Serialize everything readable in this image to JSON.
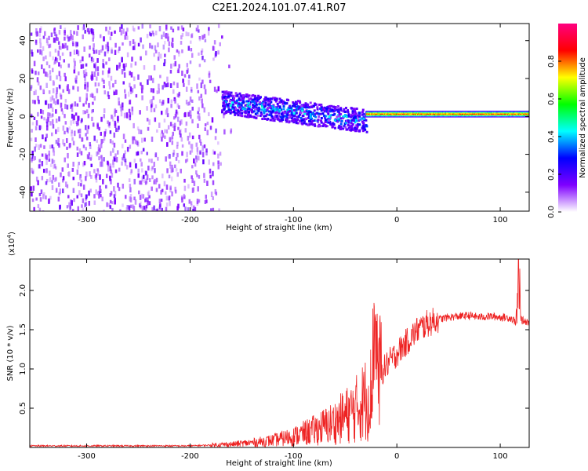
{
  "title": "C2E1.2024.101.07.41.R07",
  "chart_data": [
    {
      "type": "heatmap",
      "xlabel": "Height of straight line (km)",
      "ylabel": "Frequency (Hz)",
      "xlim": [
        -355,
        128
      ],
      "ylim": [
        -50,
        49
      ],
      "xticks": [
        -300,
        -200,
        -100,
        0,
        100
      ],
      "xtick_labels": [
        "-300",
        "-200",
        "-100",
        "0",
        "100"
      ],
      "yticks": [
        -40,
        -20,
        0,
        20,
        40
      ],
      "ytick_labels": [
        "-40",
        "-20",
        "0",
        "20",
        "40"
      ],
      "colorbar": {
        "label": "Normalized spectral amplitude",
        "range": [
          0,
          1
        ],
        "ticks": [
          0.0,
          0.2,
          0.4,
          0.6,
          0.8
        ],
        "tick_labels": [
          "0.0",
          "0.2",
          "0.4",
          "0.6",
          "0.8"
        ],
        "colormap": [
          "#ffffff",
          "#7f00ff",
          "#0000ff",
          "#00ffff",
          "#00ff00",
          "#ffff00",
          "#ff0000",
          "#ff0080"
        ]
      },
      "description_regions": [
        {
          "x": [
            -355,
            -170
          ],
          "y": [
            -50,
            49
          ],
          "amplitude": 0.1
        },
        {
          "x": [
            -170,
            -30
          ],
          "y_center_start": 8,
          "y_center_end": -2,
          "amplitude": 0.4
        },
        {
          "x": [
            -30,
            128
          ],
          "y_center": 1,
          "amplitude": 0.9
        }
      ]
    },
    {
      "type": "line",
      "xlabel": "Height of straight line (km)",
      "ylabel": "SNR (10 * v/v)",
      "y_multiplier": "(x10",
      "y_multiplier_exp": "4",
      "y_multiplier_close": ")",
      "xlim": [
        -355,
        128
      ],
      "ylim": [
        0,
        2.4
      ],
      "xticks": [
        -300,
        -200,
        -100,
        0,
        100
      ],
      "xtick_labels": [
        "-300",
        "-200",
        "-100",
        "0",
        "100"
      ],
      "yticks": [
        0.5,
        1.0,
        1.5,
        2.0
      ],
      "ytick_labels": [
        "0.5",
        "1.0",
        "1.5",
        "2.0"
      ],
      "series": [
        {
          "color": "#ee2222",
          "x": [
            -355,
            -300,
            -250,
            -200,
            -180,
            -160,
            -140,
            -120,
            -100,
            -80,
            -60,
            -40,
            -30,
            -20,
            -15,
            -10,
            0,
            10,
            20,
            30,
            40,
            50,
            60,
            70,
            80,
            90,
            100,
            110,
            115,
            118,
            120,
            128
          ],
          "y": [
            0.02,
            0.02,
            0.02,
            0.02,
            0.03,
            0.04,
            0.06,
            0.09,
            0.14,
            0.22,
            0.32,
            0.48,
            0.62,
            0.8,
            0.95,
            1.05,
            1.2,
            1.35,
            1.5,
            1.58,
            1.63,
            1.66,
            1.67,
            1.68,
            1.66,
            1.67,
            1.66,
            1.65,
            1.6,
            2.3,
            1.62,
            1.6
          ]
        }
      ]
    }
  ]
}
